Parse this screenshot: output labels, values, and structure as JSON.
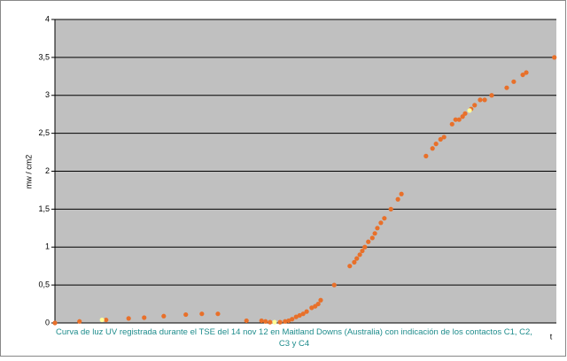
{
  "chart_data": {
    "type": "scatter",
    "ylabel": "mw / cm2",
    "xlabel": "t",
    "caption": "Curva de luz UV registrada durante el TSE del 14 nov 12 en Maitland Downs (Australia) con indicación de los contactos C1, C2, C3 y C4",
    "xlim": [
      0,
      100
    ],
    "ylim": [
      0,
      4
    ],
    "yticks": [
      0,
      {
        "value": 0.5,
        "label": "0,5"
      },
      1,
      {
        "value": 1.5,
        "label": "1,5"
      },
      2,
      {
        "value": 2.5,
        "label": "2,5"
      },
      3,
      {
        "value": 3.5,
        "label": "3,5"
      },
      4
    ],
    "grid": true,
    "series": [
      {
        "color": "#e8702a",
        "x": [
          0,
          4.9,
          10.2,
          14.7,
          17.8,
          21.7,
          26.1,
          29.3,
          32.5,
          38.2,
          41.2,
          42.0,
          42.9,
          44.9,
          45.9,
          46.6,
          47.3,
          48.1,
          48.8,
          49.5,
          50.2,
          51.2,
          51.9,
          52.5,
          53.0,
          55.7,
          58.8,
          59.7,
          60.2,
          60.8,
          61.3,
          61.8,
          62.5,
          63.3,
          63.8,
          64.3,
          65.0,
          65.7,
          67.0,
          68.4,
          69.1,
          74.0,
          75.3,
          76.0,
          76.9,
          77.6,
          79.2,
          79.9,
          80.6,
          81.3,
          81.8,
          83.0,
          83.7,
          84.8,
          85.7,
          87.1,
          90.1,
          91.5,
          93.3,
          94.0,
          99.6
        ],
        "values": [
          0,
          0.02,
          0.04,
          0.06,
          0.07,
          0.09,
          0.11,
          0.12,
          0.12,
          0.03,
          0.03,
          0.02,
          0.01,
          0.01,
          0.02,
          0.03,
          0.05,
          0.08,
          0.1,
          0.12,
          0.15,
          0.2,
          0.22,
          0.25,
          0.3,
          0.5,
          0.75,
          0.8,
          0.85,
          0.9,
          0.95,
          1.0,
          1.07,
          1.12,
          1.18,
          1.25,
          1.32,
          1.38,
          1.5,
          1.63,
          1.7,
          2.2,
          2.3,
          2.36,
          2.42,
          2.45,
          2.62,
          2.68,
          2.68,
          2.72,
          2.76,
          2.82,
          2.87,
          2.94,
          2.94,
          3.0,
          3.1,
          3.18,
          3.27,
          3.3,
          3.5
        ]
      },
      {
        "color": "#ffff99",
        "x": [
          9.4,
          43.8,
          82.7
        ],
        "values": [
          0.04,
          0.01,
          2.8
        ]
      }
    ]
  }
}
